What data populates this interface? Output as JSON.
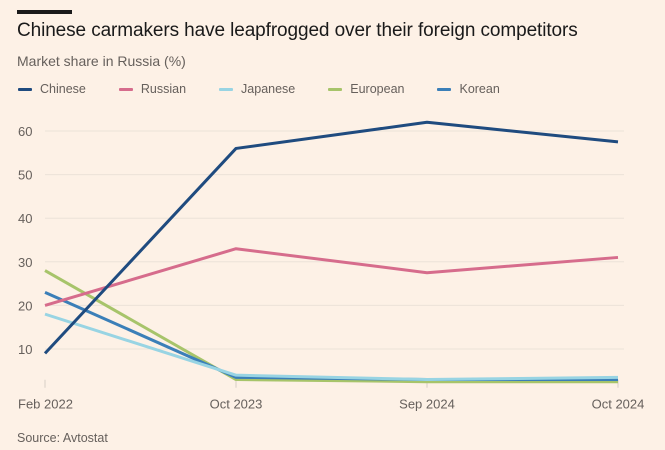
{
  "header": {
    "title": "Chinese carmakers have leapfrogged over their foreign competitors",
    "subtitle": "Market share in Russia (%)"
  },
  "legend": [
    {
      "label": "Chinese",
      "color": "#1f4b7f"
    },
    {
      "label": "Russian",
      "color": "#d66c8c"
    },
    {
      "label": "Japanese",
      "color": "#98d4e3"
    },
    {
      "label": "European",
      "color": "#a7c46a"
    },
    {
      "label": "Korean",
      "color": "#3b7fb8"
    }
  ],
  "footer": {
    "source": "Source: Avtostat"
  },
  "chart_data": {
    "type": "line",
    "title": "Chinese carmakers have leapfrogged over their foreign competitors",
    "subtitle": "Market share in Russia (%)",
    "xlabel": "",
    "ylabel": "Market share in Russia (%)",
    "categories": [
      "Feb 2022",
      "Oct 2023",
      "Sep 2024",
      "Oct 2024"
    ],
    "yticks": [
      10,
      20,
      30,
      40,
      50,
      60
    ],
    "ylim": [
      2.5,
      64
    ],
    "grid": true,
    "legend_position": "top-left",
    "series": [
      {
        "name": "Chinese",
        "color": "#1f4b7f",
        "values": [
          9,
          56,
          62,
          57.5
        ]
      },
      {
        "name": "Russian",
        "color": "#d66c8c",
        "values": [
          20,
          33,
          27.5,
          31
        ]
      },
      {
        "name": "Japanese",
        "color": "#98d4e3",
        "values": [
          18,
          4,
          3,
          3.5
        ]
      },
      {
        "name": "European",
        "color": "#a7c46a",
        "values": [
          28,
          3,
          2.5,
          2.5
        ]
      },
      {
        "name": "Korean",
        "color": "#3b7fb8",
        "values": [
          23,
          3.5,
          3,
          3
        ]
      }
    ],
    "source": "Source: Avtostat"
  }
}
